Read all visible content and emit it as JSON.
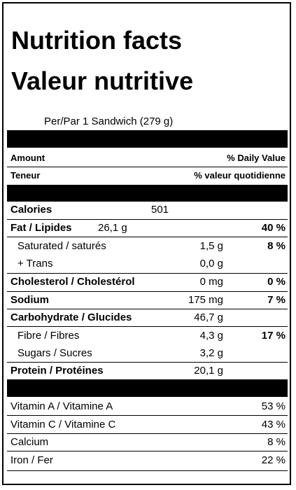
{
  "title_en": "Nutrition facts",
  "title_fr": "Valeur nutritive",
  "serving": "Per/Par 1 Sandwich  (279 g)",
  "headers": {
    "amount_en": "Amount",
    "amount_fr": "Teneur",
    "dv_en": "% Daily Value",
    "dv_fr": "% valeur quotidienne"
  },
  "calories": {
    "label": "Calories",
    "value": "501"
  },
  "nutrients": {
    "fat": {
      "label": "Fat / Lipides",
      "amount": "26,1 g",
      "dv": "40 %"
    },
    "saturated": {
      "label": "Saturated / saturés",
      "amount": "1,5 g",
      "dv": "8 %"
    },
    "trans": {
      "label": "+ Trans",
      "amount": "0,0 g",
      "dv": ""
    },
    "cholesterol": {
      "label": "Cholesterol / Cholestérol",
      "amount": "0 mg",
      "dv": "0 %"
    },
    "sodium": {
      "label": "Sodium",
      "amount": "175 mg",
      "dv": "7 %"
    },
    "carbohydrate": {
      "label": "Carbohydrate / Glucides",
      "amount": "46,7 g",
      "dv": ""
    },
    "fibre": {
      "label": "Fibre / Fibres",
      "amount": "4,3 g",
      "dv": "17 %"
    },
    "sugars": {
      "label": "Sugars / Sucres",
      "amount": "3,2 g",
      "dv": ""
    },
    "protein": {
      "label": "Protein / Protéines",
      "amount": "20,1 g",
      "dv": ""
    }
  },
  "vitamins": {
    "vitamin_a": {
      "label": "Vitamin A / Vitamine A",
      "dv": "53 %"
    },
    "vitamin_c": {
      "label": "Vitamin C / Vitamine C",
      "dv": "43 %"
    },
    "calcium": {
      "label": "Calcium",
      "dv": "8 %"
    },
    "iron": {
      "label": "Iron / Fer",
      "dv": "22 %"
    }
  }
}
